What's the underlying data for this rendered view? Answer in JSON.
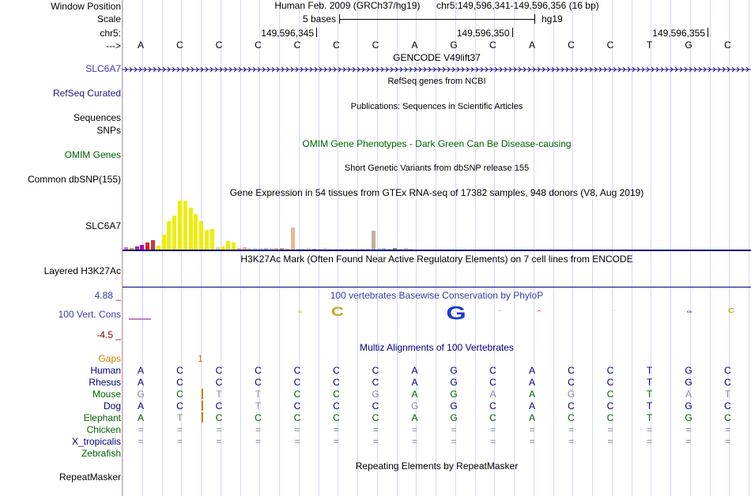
{
  "colors": {
    "navy": "#000080",
    "blue": "#3a3ab0",
    "green": "#006400",
    "darkred": "#8b0000",
    "orange": "#d08000",
    "gray": "#8a8aa8",
    "yellow": "#e0e000"
  },
  "labels": [
    {
      "text": "Window Position",
      "color": "#000000",
      "link": false
    },
    {
      "text": "Scale",
      "color": "#000000",
      "link": false
    },
    {
      "text": "chr5:",
      "color": "#000000",
      "link": false
    },
    {
      "text": "--->",
      "color": "#000000",
      "link": true
    },
    {
      "text": "SLC6A7",
      "color": "#3a3ab0",
      "link": true
    },
    {
      "text": "RefSeq Curated",
      "color": "#1a1a80",
      "link": true
    },
    {
      "text": "Sequences",
      "color": "#000000",
      "link": true
    },
    {
      "text": "SNPs",
      "color": "#000000",
      "link": true
    },
    {
      "text": "OMIM Genes",
      "color": "#006400",
      "link": true
    },
    {
      "text": "Common dbSNP(155)",
      "color": "#000000",
      "link": true
    },
    {
      "text": "SLC6A7",
      "color": "#000000",
      "link": true
    },
    {
      "text": "Layered H3K27Ac",
      "color": "#000000",
      "link": true
    },
    {
      "text": "4.88 _",
      "color": "#3a3ab0",
      "link": false
    },
    {
      "text": "100 Vert. Cons",
      "color": "#3a3ab0",
      "link": true
    },
    {
      "text": "-4.5 _",
      "color": "#8b0000",
      "link": false
    },
    {
      "text": "Gaps",
      "color": "#d08000",
      "link": true
    },
    {
      "text": "Human",
      "color": "#000080",
      "link": true
    },
    {
      "text": "Rhesus",
      "color": "#000080",
      "link": true
    },
    {
      "text": "Mouse",
      "color": "#006400",
      "link": true
    },
    {
      "text": "Dog",
      "color": "#000080",
      "link": true
    },
    {
      "text": "Elephant",
      "color": "#006400",
      "link": true
    },
    {
      "text": "Chicken",
      "color": "#006400",
      "link": true
    },
    {
      "text": "X_tropicalis",
      "color": "#000080",
      "link": true
    },
    {
      "text": "Zebrafish",
      "color": "#006400",
      "link": true
    },
    {
      "text": "RepeatMasker",
      "color": "#000000",
      "link": true
    }
  ],
  "header": {
    "assembly": "Human Feb. 2009 (GRCh37/hg19)",
    "position": "chr5:149,596,341-149,596,356 (16 bp)",
    "scale_text": "5 bases",
    "scale_db": "hg19",
    "ticks": [
      "149,596,345",
      "149,596,350",
      "149,596,355"
    ]
  },
  "bases": [
    "A",
    "C",
    "C",
    "C",
    "C",
    "C",
    "C",
    "A",
    "G",
    "C",
    "A",
    "C",
    "C",
    "T",
    "G",
    "C"
  ],
  "tracks": {
    "gencode": "GENCODE V49lift37",
    "refseq": "RefSeq genes from NCBI",
    "publications": "Publications: Sequences in Scientific Articles",
    "omim": "OMIM Gene Phenotypes - Dark Green Can Be Disease-causing",
    "dbsnp": "Short Genetic Variants from dbSNP release 155",
    "gtex": "Gene Expression in 54 tissues from GTEx RNA-seq of 17382 samples, 948 donors (V8, Aug 2019)",
    "h3k27ac": "H3K27Ac Mark (Often Found Near Active Regulatory Elements) on 7 cell lines from ENCODE",
    "phylop": "100 vertebrates Basewise Conservation by PhyloP",
    "multiz": "Multiz Alignments of 100 Vertebrates",
    "repeatmasker": "Repeating Elements by RepeatMasker"
  },
  "gaps_value": "1",
  "alignment": [
    {
      "species": "Human",
      "seq": [
        "A",
        "C",
        "C",
        "C",
        "C",
        "C",
        "C",
        "A",
        "G",
        "C",
        "A",
        "C",
        "C",
        "T",
        "G",
        "C"
      ],
      "dim": []
    },
    {
      "species": "Rhesus",
      "seq": [
        "A",
        "C",
        "C",
        "C",
        "C",
        "C",
        "C",
        "A",
        "G",
        "C",
        "A",
        "C",
        "C",
        "T",
        "G",
        "C"
      ],
      "dim": []
    },
    {
      "species": "Mouse",
      "seq": [
        "G",
        "C",
        "T",
        "T",
        "C",
        "C",
        "G",
        "A",
        "G",
        "A",
        "A",
        "G",
        "C",
        "T",
        "A",
        "T"
      ],
      "dim": [
        0,
        2,
        3,
        6,
        9,
        11,
        14,
        15
      ]
    },
    {
      "species": "Dog",
      "seq": [
        "A",
        "C",
        "C",
        "T",
        "C",
        "C",
        "C",
        "G",
        "G",
        "C",
        "A",
        "C",
        "C",
        "T",
        "G",
        "C"
      ],
      "dim": [
        3,
        7
      ]
    },
    {
      "species": "Elephant",
      "seq": [
        "A",
        "T",
        "C",
        "C",
        "C",
        "C",
        "C",
        "A",
        "G",
        "C",
        "A",
        "C",
        "C",
        "T",
        "G",
        "C"
      ],
      "dim": [
        1
      ]
    },
    {
      "species": "Chicken",
      "seq": [
        "=",
        "=",
        "=",
        "=",
        "=",
        "=",
        "=",
        "=",
        "=",
        "=",
        "=",
        "=",
        "=",
        "=",
        "=",
        "="
      ],
      "dim": []
    },
    {
      "species": "X_tropicalis",
      "seq": [
        "=",
        "=",
        "=",
        "=",
        "=",
        "=",
        "=",
        "=",
        "=",
        "=",
        "=",
        "=",
        "=",
        "=",
        "=",
        "="
      ],
      "dim": []
    }
  ],
  "phylop_letters": [
    {
      "base": "C",
      "score": 0.22,
      "color": "#b0b020"
    },
    {
      "base": "C",
      "score": 0.6,
      "color": "#b0b020"
    },
    {
      "base": "G",
      "score": 0.85,
      "color": "#1a3ad0"
    },
    {
      "base": "A",
      "score": 0.12,
      "color": "#c8c860"
    },
    {
      "base": "A",
      "score": 0.15,
      "color": "#e03030"
    },
    {
      "base": "C",
      "score": 0.1,
      "color": "#c8c860"
    },
    {
      "base": "G",
      "score": 0.22,
      "color": "#3a3ad0"
    },
    {
      "base": "C",
      "score": 0.3,
      "color": "#b0b020"
    }
  ],
  "gtex_values": [
    {
      "color": "#c080c0",
      "value": 0.05
    },
    {
      "color": "#e0a000",
      "value": 0.04
    },
    {
      "color": "#8040a0",
      "value": 0.06
    },
    {
      "color": "#c000c0",
      "value": 0.1
    },
    {
      "color": "#e02020",
      "value": 0.14
    },
    {
      "color": "#c04040",
      "value": 0.2
    },
    {
      "color": "#eeee00",
      "value": 0.08
    },
    {
      "color": "#eeee00",
      "value": 0.3
    },
    {
      "color": "#eeee00",
      "value": 0.58
    },
    {
      "color": "#eeee00",
      "value": 0.7
    },
    {
      "color": "#eeee00",
      "value": 1.0
    },
    {
      "color": "#eeee00",
      "value": 1.0
    },
    {
      "color": "#eeee00",
      "value": 0.85
    },
    {
      "color": "#eeee00",
      "value": 0.72
    },
    {
      "color": "#eeee00",
      "value": 0.58
    },
    {
      "color": "#eeee00",
      "value": 0.4
    },
    {
      "color": "#eeee00",
      "value": 0.42
    },
    {
      "color": "#d0d0d0",
      "value": 0.05
    },
    {
      "color": "#eeee00",
      "value": 0.06
    },
    {
      "color": "#eeee00",
      "value": 0.18
    },
    {
      "color": "#eeee00",
      "value": 0.14
    },
    {
      "color": "#e0b0a0",
      "value": 0.04
    },
    {
      "color": "#e0b0a0",
      "value": 0.05
    },
    {
      "color": "#d0d0d0",
      "value": 0.03
    },
    {
      "color": "#d0d0d0",
      "value": 0.04
    },
    {
      "color": "#d0d0d0",
      "value": 0.03
    },
    {
      "color": "#a0c0e0",
      "value": 0.04
    },
    {
      "color": "#d0d0d0",
      "value": 0.03
    },
    {
      "color": "#e0b0a0",
      "value": 0.03
    },
    {
      "color": "#c0a080",
      "value": 0.04
    },
    {
      "color": "#d0d0d0",
      "value": 0.02
    },
    {
      "color": "#e8b890",
      "value": 0.45
    },
    {
      "color": "#d0d0d0",
      "value": 0.02
    },
    {
      "color": "#d0d0d0",
      "value": 0.02
    },
    {
      "color": "#d0d0d0",
      "value": 0.03
    },
    {
      "color": "#a0a0c0",
      "value": 0.02
    },
    {
      "color": "#d0d0d0",
      "value": 0.02
    },
    {
      "color": "#d0d0d0",
      "value": 0.03
    },
    {
      "color": "#d0d0d0",
      "value": 0.02
    },
    {
      "color": "#d0d0d0",
      "value": 0.02
    },
    {
      "color": "#d0d0d0",
      "value": 0.02
    },
    {
      "color": "#d0d0d0",
      "value": 0.02
    },
    {
      "color": "#d0d0d0",
      "value": 0.02
    },
    {
      "color": "#d0d0d0",
      "value": 0.02
    },
    {
      "color": "#d0d0d0",
      "value": 0.02
    },
    {
      "color": "#d0d0d0",
      "value": 0.02
    },
    {
      "color": "#c0b0a0",
      "value": 0.38
    },
    {
      "color": "#d0d0d0",
      "value": 0.03
    },
    {
      "color": "#a0c0e0",
      "value": 0.03
    },
    {
      "color": "#d0d0d0",
      "value": 0.02
    },
    {
      "color": "#60a060",
      "value": 0.04
    },
    {
      "color": "#d0d0d0",
      "value": 0.02
    },
    {
      "color": "#c0c0c0",
      "value": 0.03
    },
    {
      "color": "#d0d0d0",
      "value": 0.02
    }
  ]
}
